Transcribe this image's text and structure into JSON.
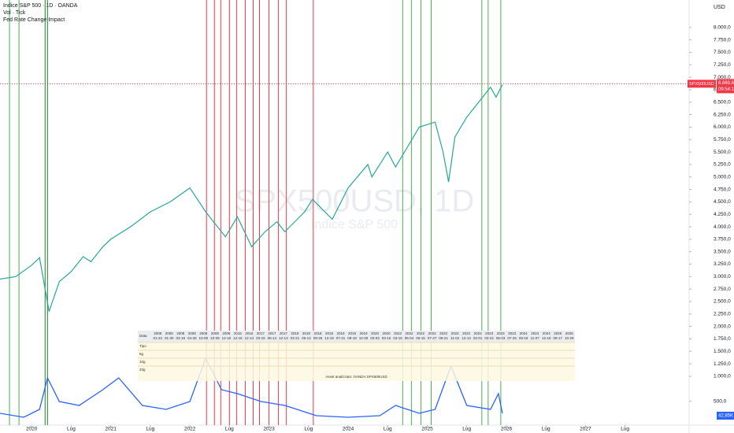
{
  "chart_data": {
    "type": "line",
    "title": "Indice S&P 500 · 1D · OANDA",
    "subtitle": "Vol · Tick",
    "overlay_title": "Fed Rate Change Impact",
    "currency": "USD",
    "watermark": "SPX500USD, 1D",
    "watermark_sub": "Indice S&P 500",
    "x": [
      2019.6,
      2019.8,
      2020.0,
      2020.1,
      2020.22,
      2020.35,
      2020.5,
      2020.65,
      2020.75,
      2020.9,
      2021.0,
      2021.25,
      2021.5,
      2021.75,
      2022.0,
      2022.2,
      2022.45,
      2022.6,
      2022.78,
      2022.95,
      2023.1,
      2023.2,
      2023.45,
      2023.55,
      2023.8,
      2024.0,
      2024.25,
      2024.3,
      2024.5,
      2024.6,
      2024.9,
      2025.1,
      2025.2,
      2025.27,
      2025.35,
      2025.5,
      2025.65,
      2025.8,
      2025.87,
      2025.95
    ],
    "series": [
      {
        "name": "SPX500USD",
        "color": "#26a69a",
        "values": [
          2950,
          3000,
          3230,
          3380,
          2300,
          2900,
          3100,
          3400,
          3300,
          3600,
          3750,
          4000,
          4300,
          4500,
          4780,
          4300,
          3800,
          4200,
          3600,
          3900,
          4100,
          3900,
          4300,
          4550,
          4150,
          4780,
          5250,
          5000,
          5500,
          5200,
          6000,
          6100,
          5500,
          4900,
          5800,
          6200,
          6500,
          6800,
          6600,
          6850
        ]
      }
    ],
    "last_price": {
      "value": 6869.6,
      "label": "6.869,6"
    },
    "countdown": "09:54:12",
    "indicator": {
      "name": "Vol · Tick",
      "color": "#2962ff",
      "ylim": [
        0,
        100
      ],
      "last_label": "42,85K",
      "x": [
        2019.6,
        2019.9,
        2020.1,
        2020.2,
        2020.35,
        2020.6,
        2020.9,
        2021.1,
        2021.4,
        2021.7,
        2022.0,
        2022.2,
        2022.4,
        2022.6,
        2022.9,
        2023.2,
        2023.6,
        2024.0,
        2024.4,
        2024.6,
        2024.9,
        2025.1,
        2025.3,
        2025.5,
        2025.8,
        2025.9,
        2025.95
      ],
      "values": [
        15,
        10,
        20,
        60,
        30,
        25,
        45,
        60,
        25,
        20,
        30,
        85,
        45,
        40,
        30,
        25,
        12,
        10,
        12,
        25,
        15,
        20,
        75,
        25,
        20,
        40,
        15
      ]
    },
    "events": {
      "x": [
        2019.72,
        2019.84,
        2020.17,
        2020.2,
        2022.21,
        2022.31,
        2022.39,
        2022.5,
        2022.59,
        2022.7,
        2022.8,
        2022.88,
        2023.0,
        2023.12,
        2023.22,
        2023.56,
        2024.69,
        2024.8,
        2024.92,
        2025.05,
        2025.69,
        2025.77,
        2025.93
      ],
      "colors": [
        "#4caf50",
        "#4caf50",
        "#1b7d2a",
        "#1b7d2a",
        "#f23645",
        "#f23645",
        "#f23645",
        "#f23645",
        "#f23645",
        "#f23645",
        "#f23645",
        "#f23645",
        "#f23645",
        "#f23645",
        "#f23645",
        "#f23645",
        "#4caf50",
        "#4caf50",
        "#4caf50",
        "#4caf50",
        "#4caf50",
        "#4caf50",
        "#4caf50"
      ]
    },
    "xlim": [
      2019.6,
      2028.31
    ],
    "xticks": [
      {
        "value": 2020,
        "label": "2020"
      },
      {
        "value": 2020.5,
        "label": "Lug"
      },
      {
        "value": 2021,
        "label": "2021"
      },
      {
        "value": 2021.5,
        "label": "Lug"
      },
      {
        "value": 2022,
        "label": "2022"
      },
      {
        "value": 2022.5,
        "label": "Lug"
      },
      {
        "value": 2023,
        "label": "2023"
      },
      {
        "value": 2023.5,
        "label": "Lug"
      },
      {
        "value": 2024,
        "label": "2024"
      },
      {
        "value": 2024.5,
        "label": "Lug"
      },
      {
        "value": 2025,
        "label": "2025"
      },
      {
        "value": 2025.5,
        "label": "Lug"
      },
      {
        "value": 2026,
        "label": "2026"
      },
      {
        "value": 2026.5,
        "label": "Lug"
      },
      {
        "value": 2027,
        "label": "2027"
      },
      {
        "value": 2027.5,
        "label": "Lug"
      }
    ],
    "ylim": [
      20,
      8550
    ],
    "yticks": [
      {
        "value": 8000,
        "label": "8.000,0"
      },
      {
        "value": 7750,
        "label": "7.750,0"
      },
      {
        "value": 7500,
        "label": "7.500,0"
      },
      {
        "value": 7250,
        "label": "7.250,0"
      },
      {
        "value": 7000,
        "label": "7.000,0"
      },
      {
        "value": 6750,
        "label": "6.750,0"
      },
      {
        "value": 6500,
        "label": "6.500,0"
      },
      {
        "value": 6250,
        "label": "6.250,0"
      },
      {
        "value": 6000,
        "label": "6.000,0"
      },
      {
        "value": 5750,
        "label": "5.750,0"
      },
      {
        "value": 5500,
        "label": "5.500,0"
      },
      {
        "value": 5250,
        "label": "5.250,0"
      },
      {
        "value": 5000,
        "label": "5.000,0"
      },
      {
        "value": 4750,
        "label": "4.750,0"
      },
      {
        "value": 4500,
        "label": "4.500,0"
      },
      {
        "value": 4250,
        "label": "4.250,0"
      },
      {
        "value": 4000,
        "label": "4.000,0"
      },
      {
        "value": 3750,
        "label": "3.750,0"
      },
      {
        "value": 3500,
        "label": "3.500,0"
      },
      {
        "value": 3250,
        "label": "3.250,0"
      },
      {
        "value": 3000,
        "label": "3.000,0"
      },
      {
        "value": 2750,
        "label": "2.750,0"
      },
      {
        "value": 2500,
        "label": "2.500,0"
      },
      {
        "value": 2250,
        "label": "2.250,0"
      },
      {
        "value": 2000,
        "label": "2.000,0"
      },
      {
        "value": 1750,
        "label": "1.750,0"
      },
      {
        "value": 1500,
        "label": "1.500,0"
      },
      {
        "value": 1250,
        "label": "1.250,0"
      },
      {
        "value": 1000,
        "label": "1.000,0"
      },
      {
        "value": 500,
        "label": "500,0"
      }
    ],
    "table": {
      "header_label": "Data",
      "row_labels": [
        "Tipo",
        "5g",
        "10g",
        "20g"
      ],
      "footer": "Asset analizzato: OANDA:SPX500USD",
      "dates": [
        [
          "2008",
          "01-22"
        ],
        [
          "2008",
          "01-30"
        ],
        [
          "2008",
          "03-18"
        ],
        [
          "2008",
          "04-30"
        ],
        [
          "2008",
          "10-08"
        ],
        [
          "2008",
          "10-29"
        ],
        [
          "2008",
          "12-16"
        ],
        [
          "2015",
          "12-16"
        ],
        [
          "2016",
          "12-14"
        ],
        [
          "2017",
          "03-15"
        ],
        [
          "2017",
          "06-14"
        ],
        [
          "2017",
          "12-13"
        ],
        [
          "2018",
          "03-21"
        ],
        [
          "2018",
          "06-13"
        ],
        [
          "2018",
          "09-26"
        ],
        [
          "2018",
          "12-19"
        ],
        [
          "2019",
          "07-31"
        ],
        [
          "2019",
          "09-18"
        ],
        [
          "2019",
          "10-30"
        ],
        [
          "2020",
          "03-03"
        ],
        [
          "2020",
          "03-15"
        ],
        [
          "2022",
          "03-16"
        ],
        [
          "2022",
          "05-04"
        ],
        [
          "2022",
          "06-15"
        ],
        [
          "2022",
          "07-27"
        ],
        [
          "2022",
          "09-21"
        ],
        [
          "2022",
          "11-02"
        ],
        [
          "2022",
          "12-14"
        ],
        [
          "2023",
          "02-01"
        ],
        [
          "2023",
          "03-22"
        ],
        [
          "2023",
          "05-03"
        ],
        [
          "2023",
          "07-26"
        ],
        [
          "2024",
          "09-18"
        ],
        [
          "2024",
          "11-07"
        ],
        [
          "2024",
          "12-18"
        ],
        [
          "2025",
          "09-17"
        ],
        [
          "2025",
          "10-29"
        ]
      ]
    }
  }
}
